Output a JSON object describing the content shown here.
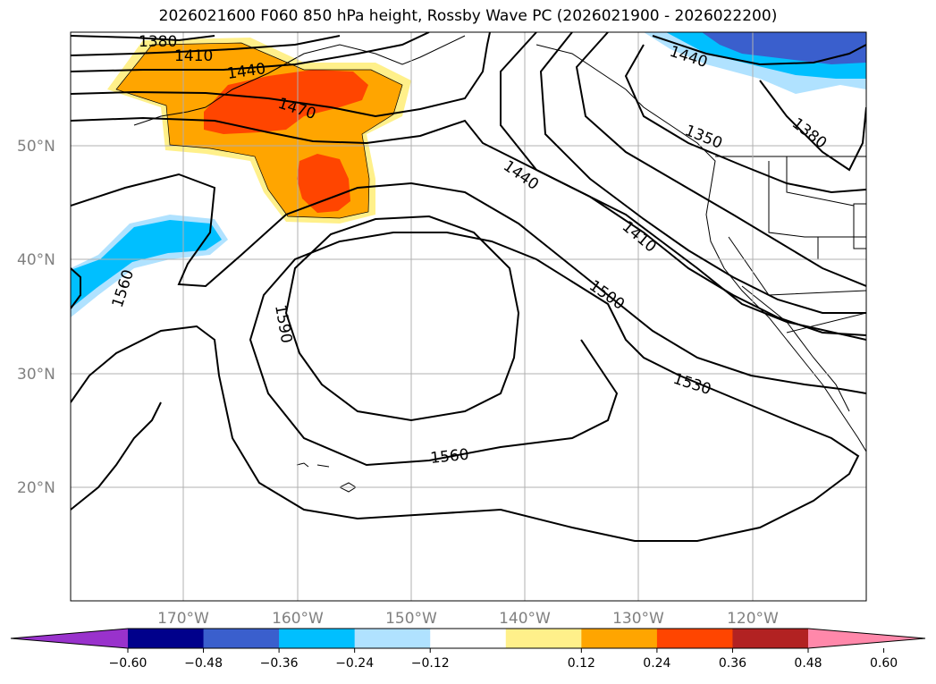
{
  "title": "2026021600 F060 850 hPa height, Rossby Wave PC (2026021900 - 2026022200)",
  "axes": {
    "lat_labels": [
      "50°N",
      "40°N",
      "30°N",
      "20°N"
    ],
    "lon_labels": [
      "170°W",
      "160°W",
      "150°W",
      "140°W",
      "130°W",
      "120°W"
    ]
  },
  "contour_labels": [
    {
      "text": "1380",
      "region": "nw"
    },
    {
      "text": "1410",
      "region": "nw"
    },
    {
      "text": "1440",
      "region": "nw"
    },
    {
      "text": "1470",
      "region": "nw"
    },
    {
      "text": "1440",
      "region": "ne"
    },
    {
      "text": "1350",
      "region": "ne"
    },
    {
      "text": "1380",
      "region": "ne"
    },
    {
      "text": "1440",
      "region": "center-east"
    },
    {
      "text": "1410",
      "region": "center-east"
    },
    {
      "text": "1500",
      "region": "center-east"
    },
    {
      "text": "1530",
      "region": "center-east"
    },
    {
      "text": "1560",
      "region": "south"
    },
    {
      "text": "1560",
      "region": "west"
    },
    {
      "text": "1590",
      "region": "center"
    }
  ],
  "colorbar": {
    "ticks": [
      "−0.60",
      "−0.48",
      "−0.36",
      "−0.24",
      "−0.12",
      "0.12",
      "0.24",
      "0.36",
      "0.48",
      "0.60"
    ],
    "colors": [
      "#9932cc",
      "#00008b",
      "#3a5fcd",
      "#00bfff",
      "#b0e2ff",
      "#ffffff",
      "#fff08a",
      "#ffa500",
      "#ff4500",
      "#b22222",
      "#ff88aa"
    ]
  }
}
